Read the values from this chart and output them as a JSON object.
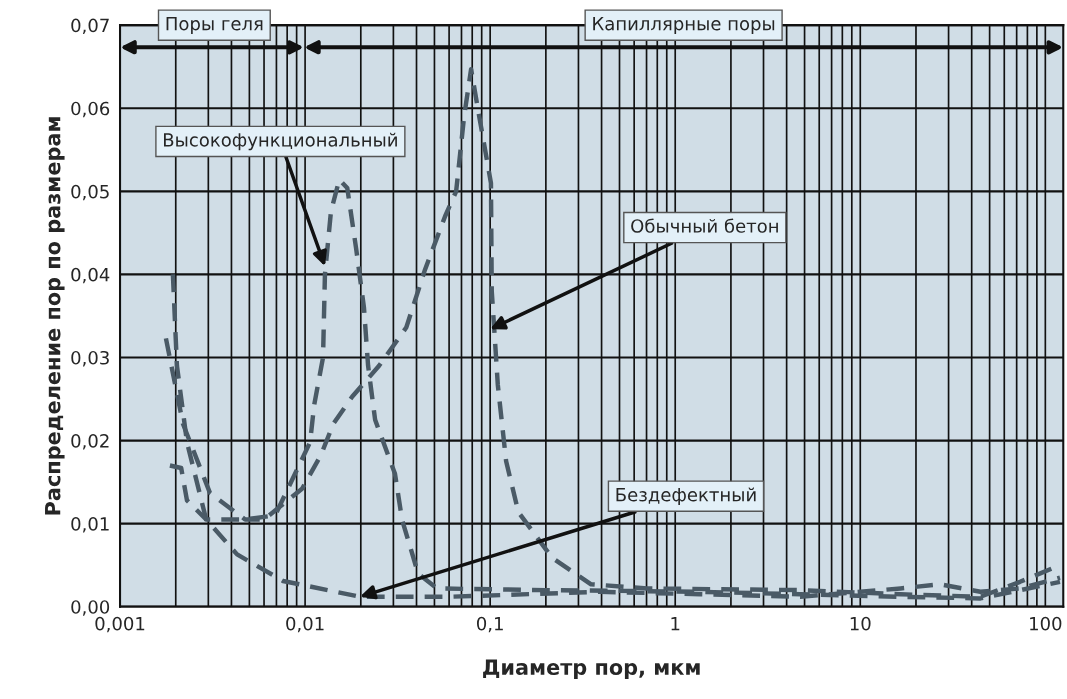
{
  "chart_data": {
    "type": "line",
    "xlabel": "Диаметр пор, мкм",
    "ylabel": "Распределение пор по размерам",
    "log": "x",
    "xlim": [
      0.001,
      125
    ],
    "xticks": [
      {
        "value": 0.001,
        "label": "0,001"
      },
      {
        "value": 0.01,
        "label": "0,01"
      },
      {
        "value": 0.1,
        "label": "0,1"
      },
      {
        "value": 1,
        "label": "1"
      },
      {
        "value": 10,
        "label": "10"
      },
      {
        "value": 100,
        "label": "100"
      }
    ],
    "ylim": [
      0,
      0.07
    ],
    "yticks": [
      {
        "value": 0,
        "label": "0,00"
      },
      {
        "value": 0.01,
        "label": "0,01"
      },
      {
        "value": 0.02,
        "label": "0,02"
      },
      {
        "value": 0.03,
        "label": "0,03"
      },
      {
        "value": 0.04,
        "label": "0,04"
      },
      {
        "value": 0.05,
        "label": "0,05"
      },
      {
        "value": 0.06,
        "label": "0,06"
      },
      {
        "value": 0.07,
        "label": "0,07"
      }
    ],
    "grid": true,
    "line_style": "dashed",
    "marker": "none",
    "series": [
      {
        "color": "#4a5a66",
        "x": [
          0.00193,
          0.00203,
          0.0023,
          0.00292,
          0.00429,
          0.0076,
          0.0198,
          0.0608,
          0.393,
          1.36,
          4.74,
          16.5,
          27,
          44.6,
          73,
          120
        ],
        "values": [
          0.04,
          0.029,
          0.0198,
          0.0105,
          0.0063,
          0.0031,
          0.0012,
          0.0012,
          0.0018,
          0.0015,
          0.0012,
          0.0022,
          0.0027,
          0.0018,
          0.0022,
          0.0035
        ]
      },
      {
        "color": "#4a5a66",
        "x": [
          0.00177,
          0.00219,
          0.00306,
          0.00474,
          0.006,
          0.00963,
          0.0122,
          0.0142,
          0.018,
          0.0251,
          0.0352,
          0.0445,
          0.0571,
          0.0655,
          0.0723,
          0.0789,
          0.0873,
          0.101,
          0.102,
          0.106,
          0.11,
          0.122,
          0.142,
          0.216,
          0.351,
          0.706,
          4.74,
          16.5,
          44.6,
          73,
          120
        ],
        "values": [
          0.0323,
          0.022,
          0.0137,
          0.0105,
          0.0105,
          0.0142,
          0.0183,
          0.022,
          0.0253,
          0.029,
          0.0336,
          0.0406,
          0.047,
          0.05,
          0.059,
          0.0647,
          0.059,
          0.051,
          0.038,
          0.0323,
          0.0267,
          0.0175,
          0.0114,
          0.0059,
          0.0027,
          0.0022,
          0.002,
          0.0015,
          0.0012,
          0.003,
          0.005
        ]
      },
      {
        "color": "#4a5a66",
        "x": [
          0.00186,
          0.00214,
          0.0023,
          0.00292,
          0.00474,
          0.00689,
          0.01064,
          0.0112,
          0.0125,
          0.0128,
          0.0138,
          0.0153,
          0.0169,
          0.0189,
          0.0208,
          0.0219,
          0.0239,
          0.0306,
          0.0334,
          0.0408,
          0.0517,
          0.2,
          1.36,
          4.74,
          16.5,
          44.6,
          120
        ],
        "values": [
          0.017,
          0.0167,
          0.0128,
          0.0105,
          0.0105,
          0.011,
          0.0198,
          0.0243,
          0.03,
          0.04,
          0.0476,
          0.0514,
          0.0504,
          0.043,
          0.036,
          0.029,
          0.0225,
          0.016,
          0.0105,
          0.004,
          0.0022,
          0.002,
          0.0018,
          0.0015,
          0.0012,
          0.001,
          0.003
        ]
      }
    ],
    "annotations": [
      {
        "text": "Высокофункциональный",
        "x": 0.0128,
        "y": 0.041
      },
      {
        "text": "Обычный бетон",
        "x": 0.1,
        "y": 0.0334
      },
      {
        "text": "Бездефектный",
        "x": 0.0198,
        "y": 0.0012
      },
      "Поры геля",
      "Капиллярные поры"
    ]
  }
}
